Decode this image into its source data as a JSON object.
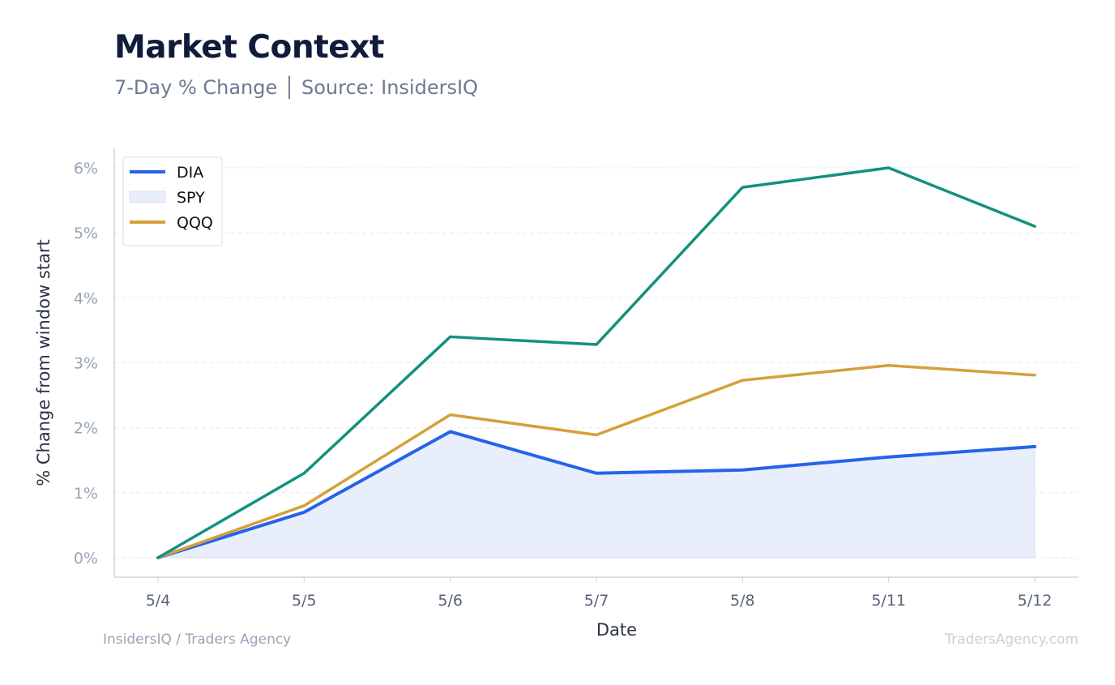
{
  "header": {
    "title": "Market Context",
    "subtitle": "7-Day % Change │ Source: InsidersIQ"
  },
  "footer": {
    "left": "InsidersIQ / Traders Agency",
    "right": "TradersAgency.com"
  },
  "chart_data": {
    "type": "line",
    "categories": [
      "5/4",
      "5/5",
      "5/6",
      "5/7",
      "5/8",
      "5/11",
      "5/12"
    ],
    "xlabel": "Date",
    "ylabel": "% Change from window start",
    "ylim": [
      -0.3,
      6.3
    ],
    "yticks": [
      0,
      1,
      2,
      3,
      4,
      5,
      6
    ],
    "ytick_labels": [
      "0%",
      "1%",
      "2%",
      "3%",
      "4%",
      "5%",
      "6%"
    ],
    "grid": true,
    "legend_position": "top-left",
    "series": [
      {
        "name": "DIA",
        "values": [
          0,
          0.7,
          1.94,
          1.3,
          1.35,
          1.55,
          1.71
        ],
        "color": "#2563eb",
        "style": "line"
      },
      {
        "name": "SPY",
        "values": [
          0,
          0.7,
          1.94,
          1.3,
          1.35,
          1.55,
          1.71
        ],
        "color": "#e8eefc",
        "style": "area"
      },
      {
        "name": "QQQ",
        "values": [
          0,
          0.8,
          2.2,
          1.89,
          2.73,
          2.96,
          2.81
        ],
        "color": "#d4a03a",
        "style": "line"
      },
      {
        "name": "",
        "values": [
          0,
          1.3,
          3.4,
          3.28,
          5.7,
          6.0,
          5.1
        ],
        "color": "#13917e",
        "style": "line"
      }
    ]
  }
}
